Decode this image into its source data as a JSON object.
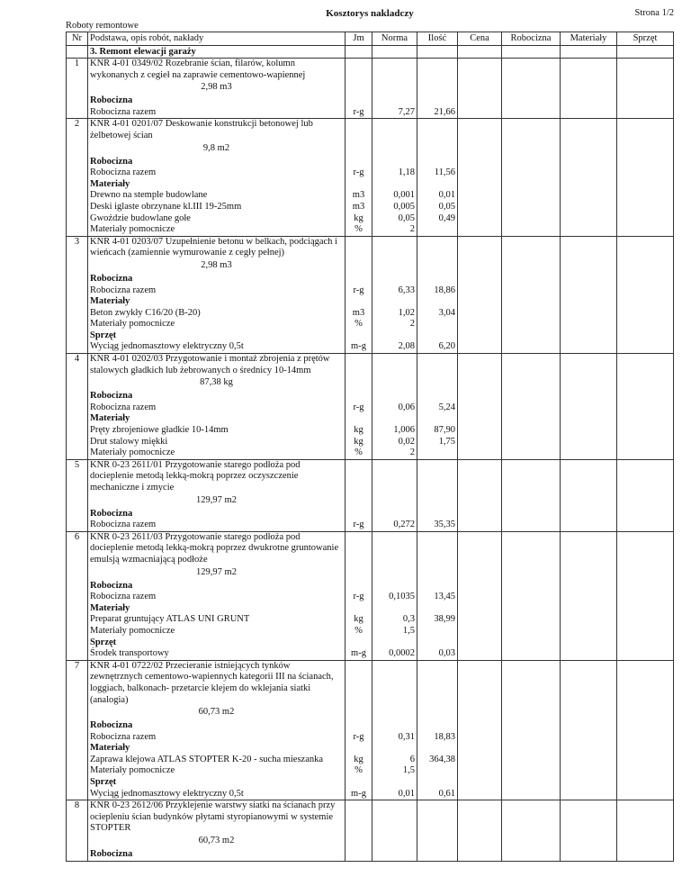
{
  "header": {
    "title": "Kosztorys nakladczy",
    "page": "Strona 1/2",
    "subtitle": "Roboty remontowe"
  },
  "columns": [
    "Nr",
    "Podstawa, opis robót, nakłady",
    "Jm",
    "Norma",
    "Ilość",
    "Cena",
    "Robocizna",
    "Materiały",
    "Sprzęt"
  ],
  "section": "3.  Remont elewacji garaży",
  "items": [
    {
      "nr": "1",
      "desc": [
        "KNR 4-01 0349/02  Rozebranie ścian, filarów, kolumn",
        "wykonanych z cegieł na zaprawie cementowo-wapiennej"
      ],
      "qty": "2,98  m3",
      "groups": [
        {
          "title": "Robocizna",
          "rows": [
            {
              "name": "Robocizna razem",
              "jm": "r-g",
              "norma": "7,27",
              "ilosc": "21,66"
            }
          ]
        }
      ]
    },
    {
      "nr": "2",
      "desc": [
        "KNR 4-01 0201/07  Deskowanie konstrukcji betonowej lub",
        "żelbetowej ścian"
      ],
      "qty": "9,8  m2",
      "groups": [
        {
          "title": "Robocizna",
          "rows": [
            {
              "name": "Robocizna razem",
              "jm": "r-g",
              "norma": "1,18",
              "ilosc": "11,56"
            }
          ]
        },
        {
          "title": "Materiały",
          "rows": [
            {
              "name": "Drewno na stemple budowlane",
              "jm": "m3",
              "norma": "0,001",
              "ilosc": "0,01"
            },
            {
              "name": "Deski iglaste obrzynane kl.III 19-25mm",
              "jm": "m3",
              "norma": "0,005",
              "ilosc": "0,05"
            },
            {
              "name": "Gwoździe budowlane gołe",
              "jm": "kg",
              "norma": "0,05",
              "ilosc": "0,49"
            },
            {
              "name": "Materiały pomocnicze",
              "jm": "%",
              "norma": "2",
              "ilosc": ""
            }
          ]
        }
      ]
    },
    {
      "nr": "3",
      "desc": [
        "KNR 4-01 0203/07  Uzupełnienie betonu w belkach, podciągach i",
        "wieńcach (zamiennie wymurowanie z cegły pełnej)"
      ],
      "qty": "2,98  m3",
      "groups": [
        {
          "title": "Robocizna",
          "rows": [
            {
              "name": "Robocizna razem",
              "jm": "r-g",
              "norma": "6,33",
              "ilosc": "18,86"
            }
          ]
        },
        {
          "title": "Materiały",
          "rows": [
            {
              "name": "Beton zwykły C16/20 (B-20)",
              "jm": "m3",
              "norma": "1,02",
              "ilosc": "3,04"
            },
            {
              "name": "Materiały pomocnicze",
              "jm": "%",
              "norma": "2",
              "ilosc": ""
            }
          ]
        },
        {
          "title": "Sprzęt",
          "rows": [
            {
              "name": "Wyciąg jednomasztowy elektryczny 0,5t",
              "jm": "m-g",
              "norma": "2,08",
              "ilosc": "6,20"
            }
          ]
        }
      ]
    },
    {
      "nr": "4",
      "desc": [
        "KNR 4-01 0202/03  Przygotowanie i montaż zbrojenia z prętów",
        "stalowych gładkich lub żebrowanych o średnicy 10-14mm"
      ],
      "qty": "87,38  kg",
      "groups": [
        {
          "title": "Robocizna",
          "rows": [
            {
              "name": "Robocizna razem",
              "jm": "r-g",
              "norma": "0,06",
              "ilosc": "5,24"
            }
          ]
        },
        {
          "title": "Materiały",
          "rows": [
            {
              "name": "Pręty zbrojeniowe gładkie 10-14mm",
              "jm": "kg",
              "norma": "1,006",
              "ilosc": "87,90"
            },
            {
              "name": "Drut stalowy miękki",
              "jm": "kg",
              "norma": "0,02",
              "ilosc": "1,75"
            },
            {
              "name": "Materiały pomocnicze",
              "jm": "%",
              "norma": "2",
              "ilosc": ""
            }
          ]
        }
      ]
    },
    {
      "nr": "5",
      "desc": [
        "KNR 0-23 2611/01  Przygotowanie starego podłoża pod",
        "docieplenie metodą lekką-mokrą poprzez oczyszczenie",
        "mechaniczne i zmycie"
      ],
      "qty": "129,97  m2",
      "groups": [
        {
          "title": "Robocizna",
          "rows": [
            {
              "name": "Robocizna razem",
              "jm": "r-g",
              "norma": "0,272",
              "ilosc": "35,35"
            }
          ]
        }
      ]
    },
    {
      "nr": "6",
      "desc": [
        "KNR 0-23 2611/03  Przygotowanie starego podłoża pod",
        "docieplenie metodą lekką-mokrą poprzez dwukrotne gruntowanie",
        "emulsją wzmacniającą podłoże"
      ],
      "qty": "129,97  m2",
      "groups": [
        {
          "title": "Robocizna",
          "rows": [
            {
              "name": "Robocizna razem",
              "jm": "r-g",
              "norma": "0,1035",
              "ilosc": "13,45"
            }
          ]
        },
        {
          "title": "Materiały",
          "rows": [
            {
              "name": "Preparat gruntujący ATLAS UNI GRUNT",
              "jm": "kg",
              "norma": "0,3",
              "ilosc": "38,99"
            },
            {
              "name": "Materiały pomocnicze",
              "jm": "%",
              "norma": "1,5",
              "ilosc": ""
            }
          ]
        },
        {
          "title": "Sprzęt",
          "rows": [
            {
              "name": "Środek transportowy",
              "jm": "m-g",
              "norma": "0,0002",
              "ilosc": "0,03"
            }
          ]
        }
      ]
    },
    {
      "nr": "7",
      "desc": [
        "KNR 4-01 0722/02  Przecieranie istniejących tynków",
        "zewnętrznych cementowo-wapiennych kategorii III na ścianach,",
        "loggiach, balkonach- przetarcie klejem do wklejania siatki",
        "(analogia)"
      ],
      "qty": "60,73  m2",
      "groups": [
        {
          "title": "Robocizna",
          "rows": [
            {
              "name": "Robocizna razem",
              "jm": "r-g",
              "norma": "0,31",
              "ilosc": "18,83"
            }
          ]
        },
        {
          "title": "Materiały",
          "rows": [
            {
              "name": "Zaprawa klejowa ATLAS STOPTER K-20 - sucha mieszanka",
              "jm": "kg",
              "norma": "6",
              "ilosc": "364,38"
            },
            {
              "name": "Materiały pomocnicze",
              "jm": "%",
              "norma": "1,5",
              "ilosc": ""
            }
          ]
        },
        {
          "title": "Sprzęt",
          "rows": [
            {
              "name": "Wyciąg jednomasztowy elektryczny 0,5t",
              "jm": "m-g",
              "norma": "0,01",
              "ilosc": "0,61"
            }
          ]
        }
      ]
    },
    {
      "nr": "8",
      "desc": [
        "KNR 0-23 2612/06  Przyklejenie warstwy siatki na ścianach przy",
        "ociepleniu ścian budynków płytami styropianowymi w systemie",
        "STOPTER"
      ],
      "qty": "60,73  m2",
      "groups": [
        {
          "title": "Robocizna",
          "rows": []
        }
      ]
    }
  ]
}
